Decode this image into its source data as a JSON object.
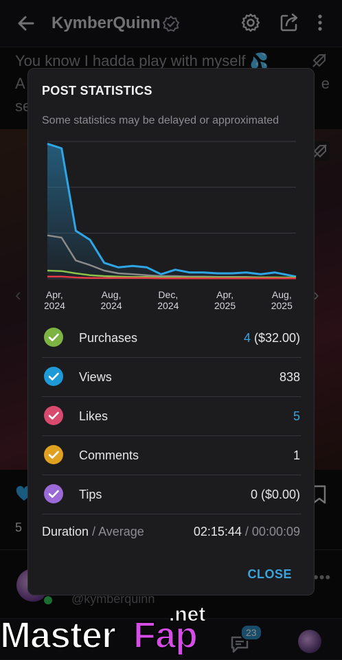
{
  "header": {
    "title": "KymberQuinn",
    "back_icon": "arrow-left-icon",
    "verified_icon": "verified-badge-icon",
    "settings_icon": "gear-icon",
    "share_icon": "share-icon",
    "more_icon": "more-vertical-icon"
  },
  "post": {
    "caption_line1": "You know I hadda play with myself 💦",
    "caption_line2_start": "A",
    "caption_line2_end": "e",
    "caption_line3_start": "se",
    "likes_count": "5",
    "author_handle": "@kymberquinn"
  },
  "bottom_nav": {
    "chat_badge": "23"
  },
  "watermark": {
    "part1": "Master",
    "part2": "Fap",
    "part3": ".net"
  },
  "modal": {
    "title": "POST STATISTICS",
    "subtitle": "Some statistics may be delayed or approximated",
    "close_label": "CLOSE",
    "rows": [
      {
        "label": "Purchases",
        "value_highlight": "4",
        "value_rest": " ($32.00)",
        "color": "#7cb342"
      },
      {
        "label": "Views",
        "value_highlight": "",
        "value_rest": "838",
        "color": "#1e9ad6"
      },
      {
        "label": "Likes",
        "value_highlight": "5",
        "value_rest": "",
        "color": "#d94b6e"
      },
      {
        "label": "Comments",
        "value_highlight": "",
        "value_rest": "1",
        "color": "#e0a020"
      },
      {
        "label": "Tips",
        "value_highlight": "",
        "value_rest": "0 ($0.00)",
        "color": "#9c6ad6"
      }
    ],
    "duration": {
      "label": "Duration",
      "separator": " / ",
      "avg_label": "Average",
      "total": "02:15:44",
      "average": "00:00:09"
    }
  },
  "chart_data": {
    "type": "line",
    "x_tick_labels": [
      {
        "line1": "Apr,",
        "line2": "2024"
      },
      {
        "line1": "Aug,",
        "line2": "2024"
      },
      {
        "line1": "Dec,",
        "line2": "2024"
      },
      {
        "line1": "Apr,",
        "line2": "2025"
      },
      {
        "line1": "Aug,",
        "line2": "2025"
      }
    ],
    "x_range": [
      0,
      17.5
    ],
    "x_tick_positions": [
      0.5,
      4.5,
      8.5,
      12.5,
      16.5
    ],
    "ylim": [
      0,
      300
    ],
    "grid": true,
    "series": [
      {
        "color": "#2ea6e6",
        "fill": true,
        "x": [
          0,
          1,
          2,
          3,
          4,
          5,
          6,
          7,
          8,
          9,
          10,
          11,
          12,
          13,
          14,
          15,
          16,
          17.5
        ],
        "values": [
          295,
          285,
          105,
          85,
          35,
          25,
          28,
          25,
          10,
          20,
          14,
          14,
          12,
          12,
          14,
          10,
          14,
          5
        ]
      },
      {
        "color": "#8a8a8a",
        "fill": false,
        "x": [
          0,
          1,
          2,
          3,
          4,
          5,
          6,
          7,
          8,
          9,
          10,
          11,
          12,
          13,
          14,
          15,
          16,
          17.5
        ],
        "values": [
          95,
          90,
          40,
          30,
          18,
          12,
          10,
          8,
          6,
          6,
          5,
          5,
          4,
          4,
          4,
          3,
          3,
          2
        ]
      },
      {
        "color": "#8bc34a",
        "fill": false,
        "x": [
          0,
          1,
          2,
          3,
          4,
          5,
          6,
          7,
          8,
          9,
          10,
          11,
          12,
          13,
          14,
          15,
          16,
          17.5
        ],
        "values": [
          18,
          17,
          12,
          8,
          6,
          5,
          4,
          4,
          3,
          3,
          3,
          3,
          3,
          3,
          3,
          3,
          3,
          3
        ]
      },
      {
        "color": "#e53945",
        "fill": false,
        "x": [
          0,
          1,
          2,
          3,
          4,
          5,
          6,
          7,
          8,
          9,
          10,
          11,
          12,
          13,
          14,
          15,
          16,
          17.5
        ],
        "values": [
          5,
          5,
          3,
          2,
          2,
          2,
          2,
          2,
          1,
          1,
          1,
          1,
          1,
          1,
          1,
          1,
          1,
          1
        ]
      }
    ]
  }
}
